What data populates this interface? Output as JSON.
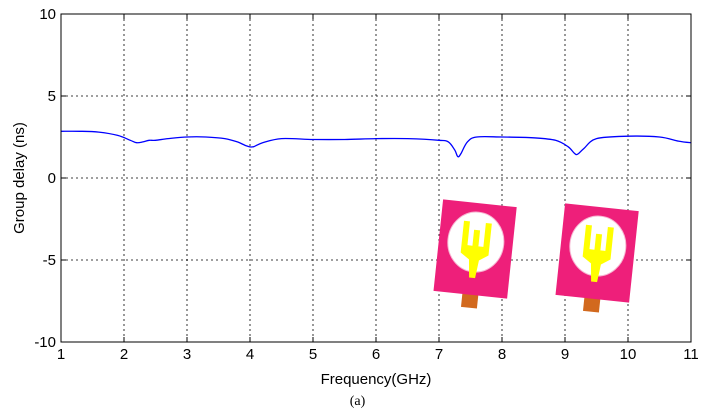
{
  "chart_data": {
    "type": "line",
    "xlabel": "Frequency(GHz)",
    "ylabel": "Group delay (ns)",
    "xlim": [
      1,
      11
    ],
    "ylim": [
      -10,
      10
    ],
    "x_ticks": [
      1,
      2,
      3,
      4,
      5,
      6,
      7,
      8,
      9,
      10,
      11
    ],
    "y_ticks": [
      -10,
      -5,
      0,
      5,
      10
    ],
    "grid": true,
    "series": [
      {
        "color": "#0000ff",
        "x": [
          1.0,
          1.3,
          1.6,
          1.9,
          2.1,
          2.2,
          2.3,
          2.4,
          2.5,
          2.7,
          3.0,
          3.3,
          3.6,
          3.8,
          3.95,
          4.05,
          4.2,
          4.5,
          5.0,
          5.5,
          6.0,
          6.5,
          7.0,
          7.15,
          7.25,
          7.3,
          7.35,
          7.45,
          7.6,
          8.0,
          8.5,
          8.85,
          9.05,
          9.15,
          9.2,
          9.3,
          9.5,
          10.0,
          10.5,
          10.8,
          11.0
        ],
        "values": [
          2.85,
          2.85,
          2.8,
          2.6,
          2.3,
          2.15,
          2.2,
          2.3,
          2.3,
          2.4,
          2.5,
          2.5,
          2.4,
          2.2,
          1.95,
          1.9,
          2.15,
          2.4,
          2.35,
          2.35,
          2.4,
          2.4,
          2.3,
          2.2,
          1.7,
          1.3,
          1.5,
          2.2,
          2.5,
          2.5,
          2.45,
          2.3,
          1.9,
          1.5,
          1.45,
          1.8,
          2.4,
          2.55,
          2.5,
          2.25,
          2.15
        ]
      }
    ]
  },
  "caption": "(a)",
  "inset_images": [
    {
      "description": "antenna-prototype",
      "colors": {
        "substrate": "#ee1f7a",
        "patch": "#ffff00",
        "connector": "#d2691e"
      }
    },
    {
      "description": "antenna-prototype",
      "colors": {
        "substrate": "#ee1f7a",
        "patch": "#ffff00",
        "connector": "#d2691e"
      }
    }
  ]
}
